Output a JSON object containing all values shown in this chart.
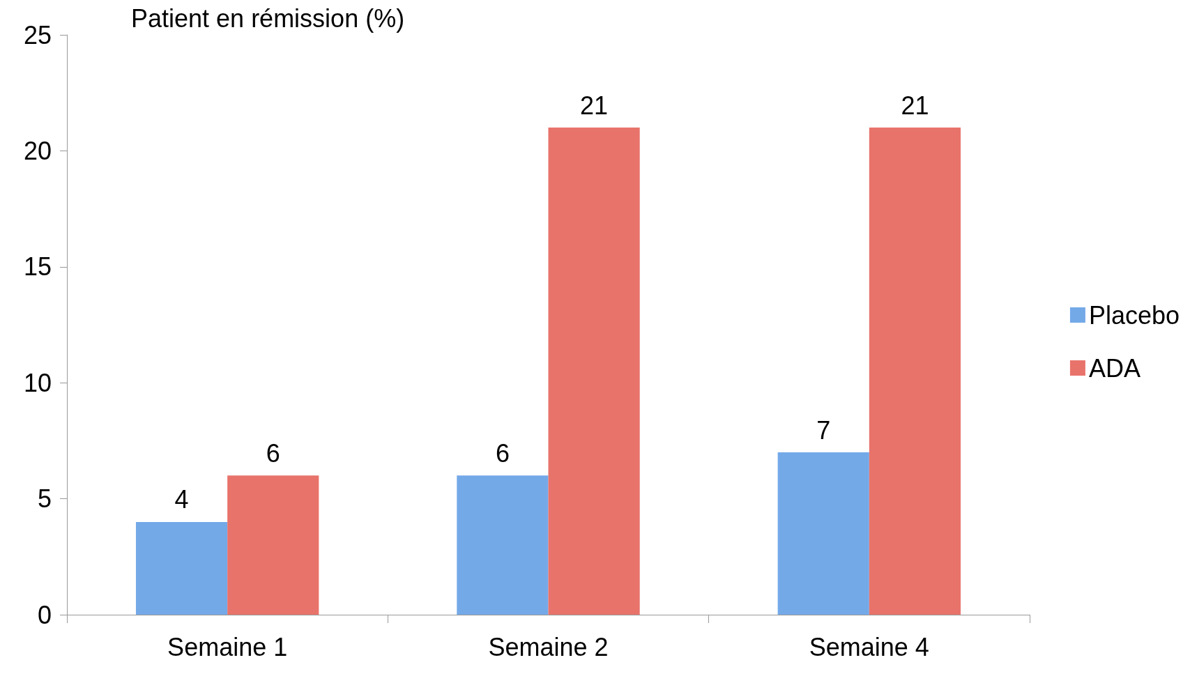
{
  "chart_data": {
    "type": "bar",
    "ylabel": "Patient en rémission (%)",
    "categories": [
      "Semaine 1",
      "Semaine 2",
      "Semaine 4"
    ],
    "series": [
      {
        "name": "Placebo",
        "color": "#74a9e8",
        "values": [
          4,
          6,
          7
        ]
      },
      {
        "name": "ADA",
        "color": "#e8736b",
        "values": [
          6,
          21,
          21
        ]
      }
    ],
    "ylim": [
      0,
      25
    ],
    "yticks": [
      0,
      5,
      10,
      15,
      20,
      25
    ],
    "grid": false,
    "legend": "right",
    "data_labels": true
  }
}
